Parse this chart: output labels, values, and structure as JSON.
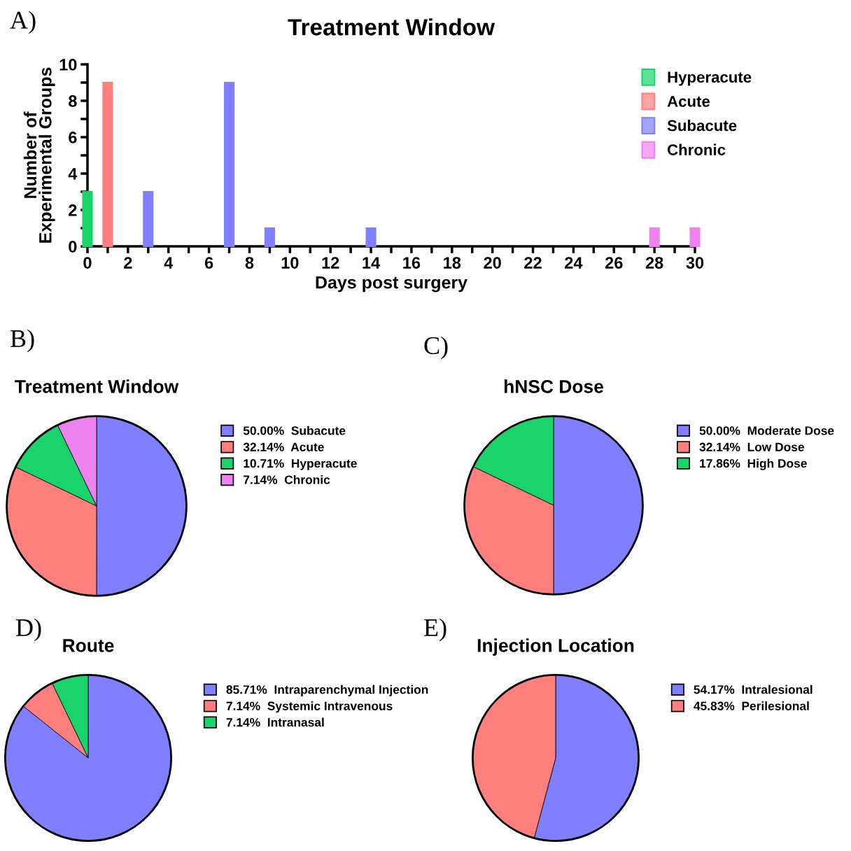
{
  "chart_data": [
    {
      "type": "bar",
      "title": "Treatment Window",
      "xlabel": "Days post surgery",
      "ylabel": "Number of\nExperimental Groups",
      "annotations": [
        "A)"
      ],
      "series": [
        {
          "name": "Hyperacute",
          "color": "#19d46b",
          "x": [
            0
          ],
          "values": [
            3
          ]
        },
        {
          "name": "Acute",
          "color": "#ff7f7f",
          "x": [
            1
          ],
          "values": [
            9
          ]
        },
        {
          "name": "Subacute",
          "color": "#7f7fff",
          "x": [
            3,
            7,
            9,
            14
          ],
          "values": [
            3,
            9,
            1,
            1
          ]
        },
        {
          "name": "Chronic",
          "color": "#ee82ee",
          "x": [
            28,
            30
          ],
          "values": [
            1,
            1
          ]
        }
      ],
      "xlim": [
        0,
        30
      ],
      "xticks": [
        0,
        {
          "value": 1,
          "label": null
        },
        2,
        {
          "value": 3,
          "label": null
        },
        4,
        {
          "value": 5,
          "label": null
        },
        6,
        {
          "value": 7,
          "label": null
        },
        8,
        {
          "value": 9,
          "label": null
        },
        10,
        {
          "value": 11,
          "label": null
        },
        12,
        {
          "value": 13,
          "label": null
        },
        14,
        {
          "value": 15,
          "label": null
        },
        16,
        {
          "value": 17,
          "label": null
        },
        18,
        {
          "value": 19,
          "label": null
        },
        20,
        {
          "value": 21,
          "label": null
        },
        22,
        {
          "value": 23,
          "label": null
        },
        24,
        {
          "value": 25,
          "label": null
        },
        26,
        {
          "value": 27,
          "label": null
        },
        28,
        {
          "value": 29,
          "label": null
        },
        30
      ],
      "ylim": [
        0,
        10
      ],
      "yticks": [
        0,
        {
          "value": 1,
          "label": null
        },
        2,
        {
          "value": 3,
          "label": null
        },
        4,
        {
          "value": 5,
          "label": null
        },
        6,
        {
          "value": 7,
          "label": null
        },
        8,
        {
          "value": 9,
          "label": null
        },
        10
      ],
      "grid": false,
      "legend": "right"
    },
    {
      "type": "pie",
      "title": "Treatment Window",
      "annotations": [
        "B)"
      ],
      "categories": [
        "Subacute",
        "Acute",
        "Hyperacute",
        "Chronic"
      ],
      "values": [
        50.0,
        32.14,
        10.71,
        7.14
      ],
      "value_labels": [
        "50.00%",
        "32.14%",
        "10.71%",
        "7.14%"
      ],
      "colors": [
        "#7f7fff",
        "#ff7f7f",
        "#19d46b",
        "#ee82ee"
      ],
      "legend": "right"
    },
    {
      "type": "pie",
      "title": "hNSC Dose",
      "annotations": [
        "C)"
      ],
      "categories": [
        "Moderate Dose",
        "Low Dose",
        "High Dose"
      ],
      "values": [
        50.0,
        32.14,
        17.86
      ],
      "value_labels": [
        "50.00%",
        "32.14%",
        "17.86%"
      ],
      "colors": [
        "#7f7fff",
        "#ff7f7f",
        "#19d46b"
      ],
      "legend": "right"
    },
    {
      "type": "pie",
      "title": "Route",
      "annotations": [
        "D)"
      ],
      "categories": [
        "Intraparenchymal Injection",
        "Systemic Intravenous",
        "Intranasal"
      ],
      "values": [
        85.71,
        7.14,
        7.14
      ],
      "value_labels": [
        "85.71%",
        "7.14%",
        "7.14%"
      ],
      "colors": [
        "#7f7fff",
        "#ff7f7f",
        "#19d46b"
      ],
      "legend": "right"
    },
    {
      "type": "pie",
      "title": "Injection Location",
      "annotations": [
        "E)"
      ],
      "categories": [
        "Intralesional",
        "Perilesional"
      ],
      "values": [
        54.17,
        45.83
      ],
      "value_labels": [
        "54.17%",
        "45.83%"
      ],
      "colors": [
        "#7f7fff",
        "#ff7f7f"
      ],
      "legend": "right"
    }
  ]
}
